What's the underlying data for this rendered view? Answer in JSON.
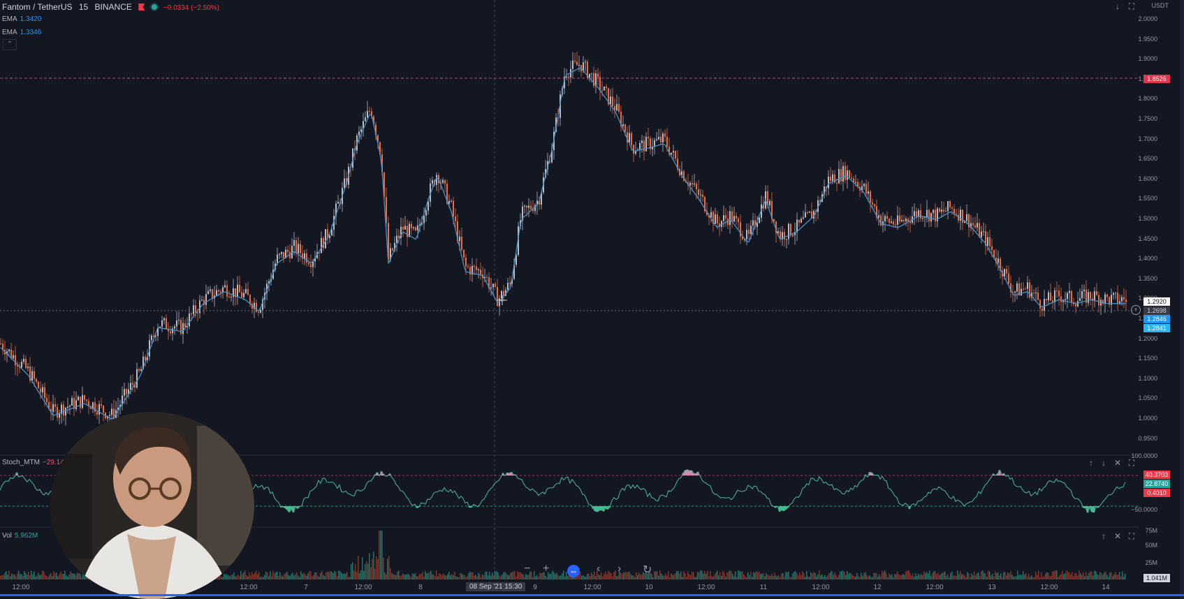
{
  "header": {
    "symbol": "Fantom / TetherUS",
    "interval": "15",
    "exchange": "BINANCE",
    "change": "−0.0334 (−2.50%)"
  },
  "indicators": {
    "ema1": {
      "label": "EMA",
      "value": "1.3420"
    },
    "ema2": {
      "label": "EMA",
      "value": "1.3346"
    }
  },
  "price_axis": {
    "currency": "USDT",
    "ticks": [
      "2.0000",
      "1.9500",
      "1.9000",
      "1.8500",
      "1.8000",
      "1.7500",
      "1.7000",
      "1.6500",
      "1.6000",
      "1.5500",
      "1.5000",
      "1.4500",
      "1.4000",
      "1.3500",
      "1.3000",
      "1.2500",
      "1.2000",
      "1.1500",
      "1.1000",
      "1.0500",
      "1.0000",
      "0.9500"
    ],
    "resistance_label": "1.8526",
    "crosshair_label": "1.2698",
    "last_price": "1.2920",
    "ema_label_1": "1.2846",
    "ema_label_2": "1.2841"
  },
  "stoch_pane": {
    "label": "Stoch_MTM",
    "value": "−29.1450",
    "axis_tick_top": "100.0000",
    "axis_tick_mid": "−50.0000",
    "tag1": "40.3703",
    "tag2": "22.8740",
    "tag3": "0.4010"
  },
  "vol_pane": {
    "label": "Vol",
    "value": "5.962M",
    "ticks": [
      "75M",
      "50M",
      "25M"
    ],
    "last": "1.041M"
  },
  "time_axis": {
    "labels": [
      {
        "t": "12:00"
      },
      {
        "t": "12:00"
      },
      {
        "t": "7"
      },
      {
        "t": "12:00"
      },
      {
        "t": "8"
      },
      {
        "t": "9"
      },
      {
        "t": "12:00"
      },
      {
        "t": "10"
      },
      {
        "t": "12:00"
      },
      {
        "t": "11"
      },
      {
        "t": "12:00"
      },
      {
        "t": "12"
      },
      {
        "t": "12:00"
      },
      {
        "t": "13"
      },
      {
        "t": "12:00"
      },
      {
        "t": "14"
      }
    ],
    "crosshair_time": "08 Sep '21  15:30"
  },
  "colors": {
    "bg": "#131722",
    "up": "#b8bcc7",
    "down": "#ef6c3a",
    "ema": "#4a90c8",
    "stoch_pos": "#d48bb0",
    "stoch_neg": "#3fbf90",
    "accent": "#2962ff"
  }
}
